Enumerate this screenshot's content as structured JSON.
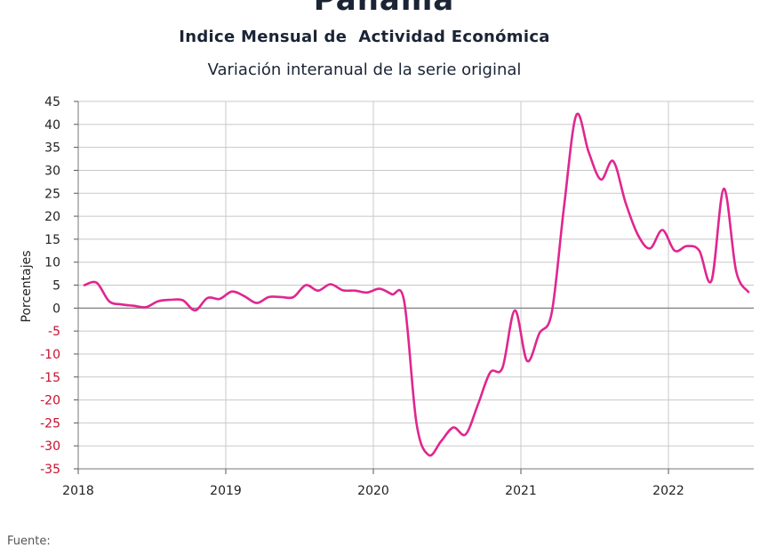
{
  "header": {
    "title": "Panamá",
    "subtitle": "Indice Mensual de  Actividad Económica",
    "description": "Variación interanual de la serie original"
  },
  "footer": {
    "source_label": "Fuente:"
  },
  "colors": {
    "line": "#e0268f",
    "negative_tick": "#c8102e",
    "positive_tick": "#222222",
    "grid": "#c8c8c8",
    "zero_line": "#777777"
  },
  "chart_data": {
    "type": "line",
    "title": "Variación interanual de la serie original",
    "xlabel": "",
    "ylabel": "Porcentajes",
    "ylim": [
      -35,
      45
    ],
    "yticks": [
      45,
      40,
      35,
      30,
      25,
      20,
      15,
      10,
      5,
      0,
      -5,
      -10,
      -15,
      -20,
      -25,
      -30,
      -35
    ],
    "xticks": [
      "2018",
      "2019",
      "2020",
      "2021",
      "2022"
    ],
    "grid": true,
    "legend": "none",
    "series": [
      {
        "x": [
          "2018-01",
          "2018-02",
          "2018-03",
          "2018-04",
          "2018-05",
          "2018-06",
          "2018-07",
          "2018-08",
          "2018-09",
          "2018-10",
          "2018-11",
          "2018-12",
          "2019-01",
          "2019-02",
          "2019-03",
          "2019-04",
          "2019-05",
          "2019-06",
          "2019-07",
          "2019-08",
          "2019-09",
          "2019-10",
          "2019-11",
          "2019-12",
          "2020-01",
          "2020-02",
          "2020-03",
          "2020-04",
          "2020-05",
          "2020-06",
          "2020-07",
          "2020-08",
          "2020-09",
          "2020-10",
          "2020-11",
          "2020-12",
          "2021-01",
          "2021-02",
          "2021-03",
          "2021-04",
          "2021-05",
          "2021-06",
          "2021-07",
          "2021-08",
          "2021-09",
          "2021-10",
          "2021-11",
          "2021-12",
          "2022-01",
          "2022-02",
          "2022-03",
          "2022-04",
          "2022-05",
          "2022-06",
          "2022-07"
        ],
        "values": [
          5.0,
          5.5,
          1.5,
          0.8,
          0.5,
          0.2,
          1.5,
          1.8,
          1.7,
          -0.5,
          2.2,
          2.0,
          3.6,
          2.6,
          1.1,
          2.4,
          2.4,
          2.4,
          5.0,
          3.8,
          5.2,
          3.9,
          3.8,
          3.4,
          4.2,
          3.0,
          1.5,
          -25.0,
          -32.0,
          -29.0,
          -26.0,
          -27.5,
          -21.0,
          -14.0,
          -13.0,
          -0.5,
          -11.5,
          -5.5,
          -1.0,
          22.0,
          42.0,
          34.0,
          28.0,
          32.0,
          23.0,
          16.0,
          13.0,
          17.0,
          12.5,
          13.5,
          12.5,
          6.0,
          26.0,
          8.0,
          3.5
        ]
      }
    ]
  }
}
